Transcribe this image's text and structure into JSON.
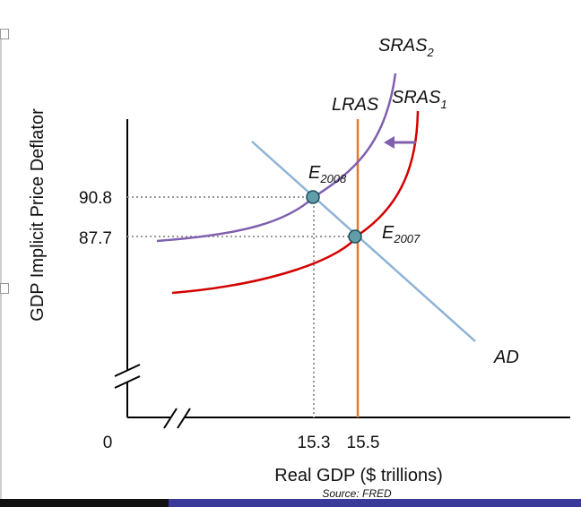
{
  "chart_data": {
    "type": "line",
    "title": "",
    "xlabel": "Real GDP ($ trillions)",
    "ylabel": "GDP Implicit Price Deflator",
    "source": "Source: FRED",
    "origin_label": "0",
    "x_ticks": [
      "15.3",
      "15.5"
    ],
    "y_ticks": [
      "90.8",
      "87.7"
    ],
    "series": [
      {
        "name": "AD",
        "label": "AD",
        "color": "#8fb3d6"
      },
      {
        "name": "LRAS",
        "label": "LRAS",
        "color": "#e07a30"
      },
      {
        "name": "SRAS1",
        "label_main": "SRAS",
        "label_sub": "1",
        "color": "#d40000"
      },
      {
        "name": "SRAS2",
        "label_main": "SRAS",
        "label_sub": "2",
        "color": "#7f5fae"
      }
    ],
    "points": [
      {
        "name": "E2008",
        "label_main": "E",
        "label_sub": "2008",
        "x": 15.3,
        "y": 90.8
      },
      {
        "name": "E2007",
        "label_main": "E",
        "label_sub": "2007",
        "x": 15.5,
        "y": 87.7
      }
    ],
    "annotations": [
      {
        "type": "arrow",
        "meaning": "shift left of SRAS",
        "color": "#7f5fae"
      }
    ]
  }
}
